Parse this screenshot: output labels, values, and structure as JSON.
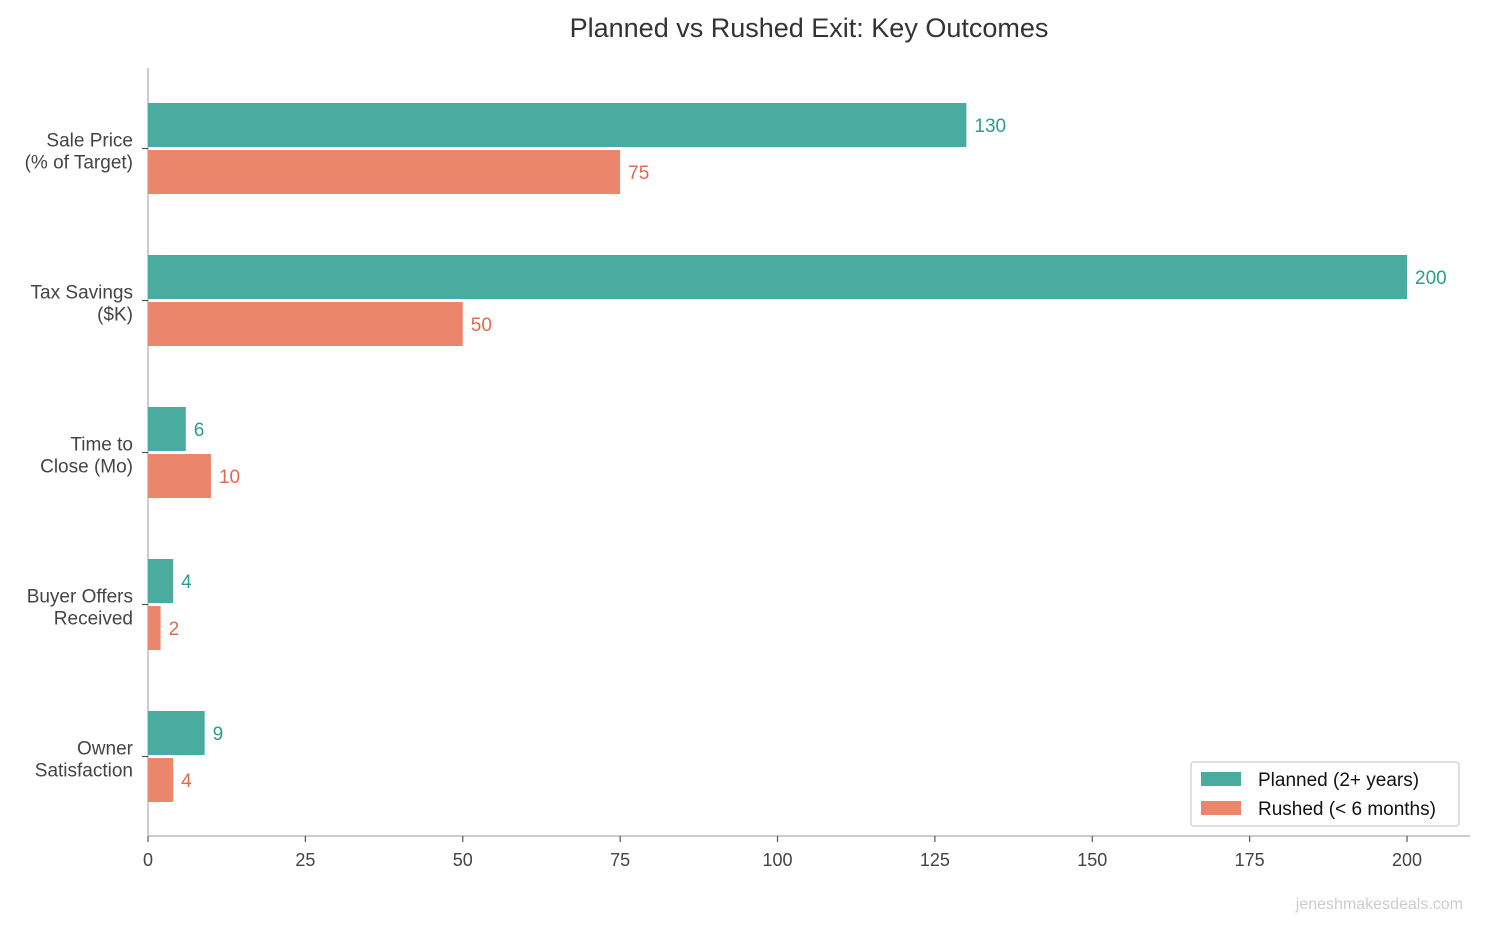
{
  "chart_data": {
    "type": "bar",
    "orientation": "horizontal",
    "title": "Planned vs Rushed Exit: Key Outcomes",
    "categories": [
      [
        "Sale Price",
        "(% of Target)"
      ],
      [
        "Tax Savings",
        "($K)"
      ],
      [
        "Time to",
        "Close (Mo)"
      ],
      [
        "Buyer Offers",
        "Received"
      ],
      [
        "Owner",
        "Satisfaction"
      ]
    ],
    "series": [
      {
        "name": "Planned (2+ years)",
        "color": "#4aab9f",
        "label_color": "#2a9d8f",
        "values": [
          130,
          200,
          6,
          4,
          9
        ]
      },
      {
        "name": "Rushed (< 6 months)",
        "color": "#eb866c",
        "label_color": "#e2684c",
        "values": [
          75,
          50,
          10,
          2,
          4
        ]
      }
    ],
    "xlim": [
      0,
      210
    ],
    "xticks": [
      0,
      25,
      50,
      75,
      100,
      125,
      150,
      175,
      200
    ],
    "xlabel": "",
    "ylabel": "",
    "grid": false,
    "legend_position": "bottom-right"
  },
  "watermark": "jeneshmakesdeals.com"
}
